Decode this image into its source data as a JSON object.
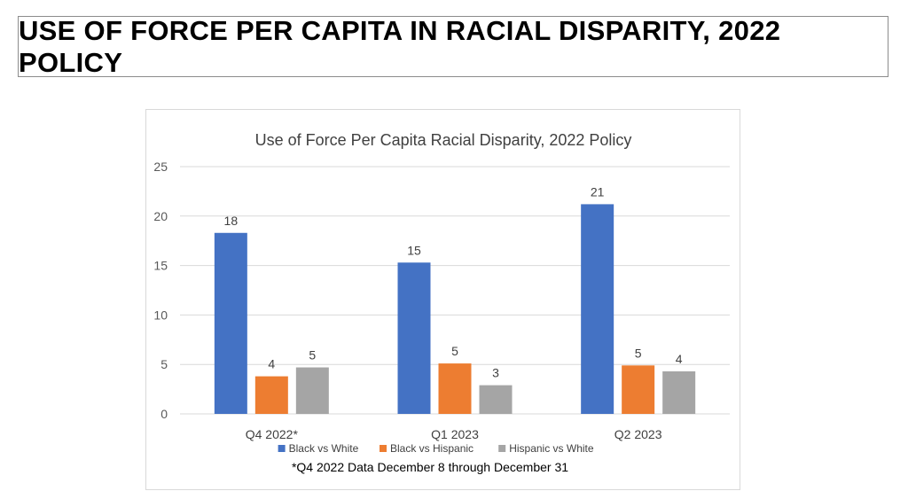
{
  "page": {
    "heading": "USE OF FORCE PER CAPITA IN RACIAL DISPARITY, 2022 POLICY"
  },
  "chart_data": {
    "type": "bar",
    "title": "Use of Force Per Capita Racial Disparity, 2022 Policy",
    "categories": [
      "Q4 2022*",
      "Q1 2023",
      "Q2 2023"
    ],
    "series": [
      {
        "name": "Black vs White",
        "color": "#4472c4",
        "values": [
          18.3,
          15.3,
          21.2
        ],
        "labels": [
          "18",
          "15",
          "21"
        ]
      },
      {
        "name": "Black vs Hispanic",
        "color": "#ed7d31",
        "values": [
          3.8,
          5.1,
          4.9
        ],
        "labels": [
          "4",
          "5",
          "5"
        ]
      },
      {
        "name": "Hispanic vs White",
        "color": "#a5a5a5",
        "values": [
          4.7,
          2.9,
          4.3
        ],
        "labels": [
          "5",
          "3",
          "4"
        ]
      }
    ],
    "ylim": [
      0,
      25
    ],
    "yticks": [
      0,
      5,
      10,
      15,
      20,
      25
    ],
    "grid": true,
    "legend_position": "bottom",
    "footnote": "*Q4 2022 Data December 8 through December 31"
  }
}
